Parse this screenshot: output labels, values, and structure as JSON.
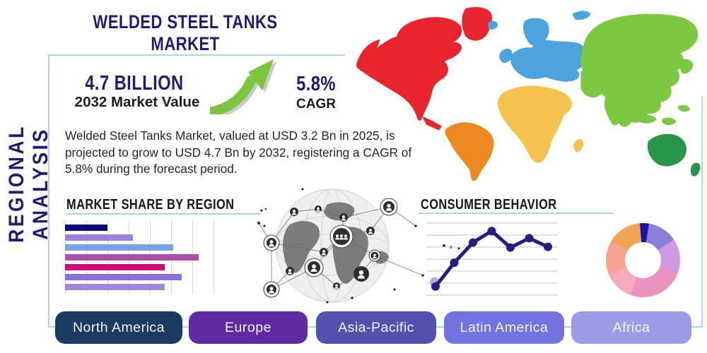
{
  "title": "WELDED STEEL TANKS MARKET",
  "side_label": "REGIONAL ANALYSIS",
  "stats": {
    "market_value": "4.7 BILLION",
    "market_value_caption": "2032 Market Value",
    "cagr": "5.8%",
    "cagr_caption": "CAGR"
  },
  "description": "Welded Steel Tanks Market, valued at USD 3.2 Bn in 2025, is projected to grow to USD 4.7 Bn by 2032, registering a CAGR of 5.8% during the forecast period.",
  "sections": {
    "market_share": "MARKET SHARE BY REGION",
    "consumer_behavior": "CONSUMER BEHAVIOR"
  },
  "regions": [
    "North America",
    "Europe",
    "Asia-Pacific",
    "Latin America",
    "Africa"
  ],
  "region_button_colors": [
    "#1b3a60",
    "#5e2ba2",
    "#5152ae",
    "#7273de",
    "#9c9de6"
  ],
  "chart_data": [
    {
      "type": "bar",
      "title": "MARKET SHARE BY REGION",
      "orientation": "horizontal",
      "categories": [
        "",
        "",
        "",
        "",
        "",
        "",
        ""
      ],
      "values": [
        20,
        32,
        51,
        63,
        47,
        55,
        47
      ],
      "colors": [
        "#0a0a70",
        "#9b82d8",
        "#7ba1e3",
        "#ad4fa8",
        "#cc0f78",
        "#8b6fd8",
        "#9f86d8"
      ],
      "xlim": [
        0,
        70
      ],
      "grid": true,
      "note": "no axis labels shown; values are relative share units read from gridlines"
    },
    {
      "type": "line",
      "title": "CONSUMER BEHAVIOR",
      "x": [
        1,
        2,
        3,
        4,
        5,
        6,
        7
      ],
      "values": [
        1.2,
        4.5,
        7.3,
        8.9,
        6.6,
        7.9,
        6.7
      ],
      "ylim": [
        0,
        10
      ],
      "line_color": "#23207d",
      "marker_color": "#23207d",
      "first_point_halo_color": "#b9a6e0",
      "grid": "horizontal",
      "note": "no tick labels shown; values estimated from gridlines"
    },
    {
      "type": "pie",
      "title": "regional share donut",
      "values": [
        4,
        13,
        15,
        25,
        13,
        15,
        15
      ],
      "colors": [
        "#1a12a0",
        "#8d7fd9",
        "#d09ae2",
        "#ea93c0",
        "#f6abbd",
        "#f5a491",
        "#efa457"
      ],
      "donut": true,
      "start_angle_deg": -5,
      "note": "no labels shown; percentages estimated from arc angles"
    }
  ],
  "map": {
    "continent_colors": {
      "north_america": "#e8242f",
      "south_america": "#ee8822",
      "europe": "#4da3dc",
      "africa": "#f4c24d",
      "asia": "#7cc843",
      "oceania": "#27964a"
    }
  },
  "theme": {
    "navy": "#201d70",
    "box_border": "#a9d7e8",
    "arrow_green": "#7cc63e",
    "arrow_shadow": "#9e9e9e",
    "grid_gray": "#d9d9de"
  }
}
